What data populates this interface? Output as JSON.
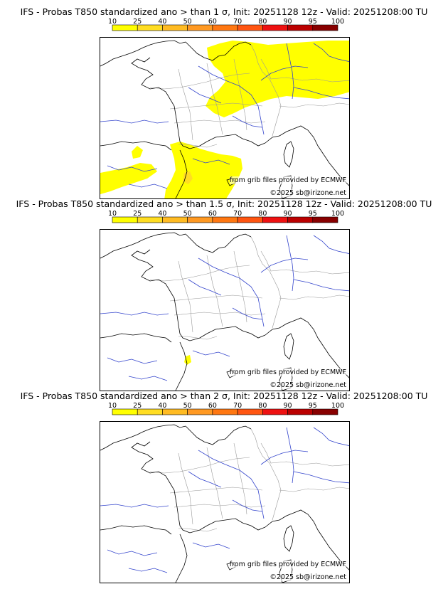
{
  "colorbar": {
    "ticks": [
      "10",
      "25",
      "40",
      "50",
      "60",
      "70",
      "80",
      "90",
      "95",
      "100"
    ],
    "colors": [
      "#ffff00",
      "#ffdd22",
      "#ffbb22",
      "#ff9922",
      "#ff7711",
      "#ff5511",
      "#ee1111",
      "#bb0000",
      "#880000"
    ]
  },
  "panels": [
    {
      "title": "IFS - Probas T850  standardized ano > than 1 σ, Init: 20251128 12z - Valid: 20251208:00 TU",
      "source": "from grib files provided by ECMWF",
      "copyright": "©2025 sb@irizone.net"
    },
    {
      "title": "IFS - Probas T850  standardized ano > than 1.5 σ, Init: 20251128 12z - Valid: 20251208:00 TU",
      "source": "from grib files provided by ECMWF",
      "copyright": "©2025 sb@irizone.net"
    },
    {
      "title": "IFS - Probas T850  standardized ano > than 2 σ, Init: 20251128 12z - Valid: 20251208:00 TU",
      "source": "from grib files provided by ECMWF",
      "copyright": "©2025 sb@irizone.net"
    }
  ],
  "map": {
    "coast_color": "#000000",
    "border_color": "#999999",
    "river_color": "#3344cc",
    "probability_color": "#ffff00",
    "probability_high_color": "#ffdd22"
  }
}
